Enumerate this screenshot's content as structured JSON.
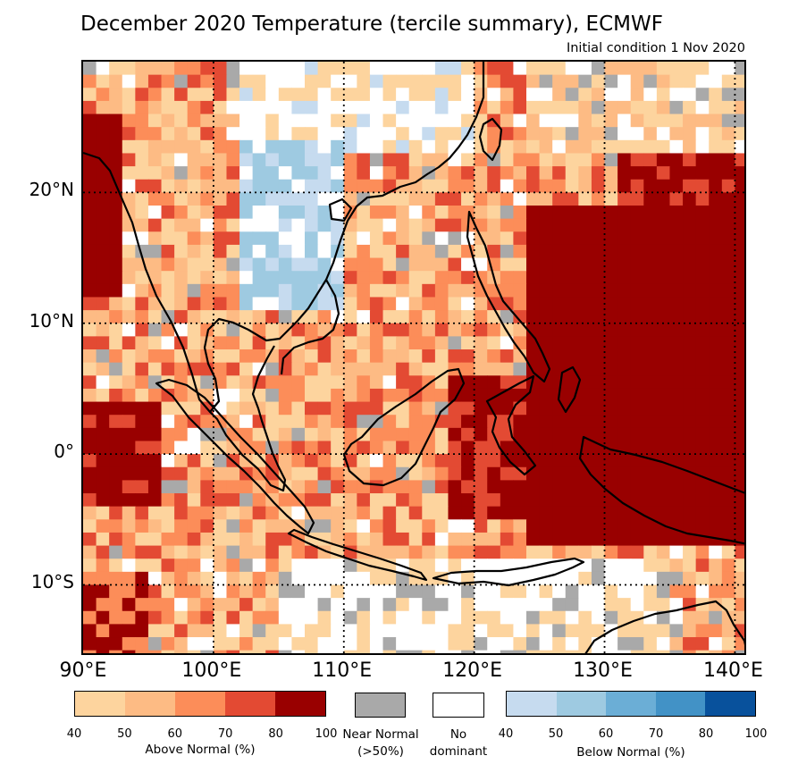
{
  "title": "December 2020 Temperature (tercile summary), ECMWF",
  "subtitle": "Initial condition 1 Nov 2020",
  "map": {
    "lon_range": [
      90,
      141
    ],
    "lat_range": [
      -15.5,
      30
    ],
    "lat_labels": [
      {
        "value": 20,
        "text": "20°N"
      },
      {
        "value": 10,
        "text": "10°N"
      },
      {
        "value": 0,
        "text": "0°"
      },
      {
        "value": -10,
        "text": "10°S"
      }
    ],
    "lon_labels": [
      {
        "value": 90,
        "text": "90°E"
      },
      {
        "value": 100,
        "text": "100°E"
      },
      {
        "value": 110,
        "text": "110°E"
      },
      {
        "value": 120,
        "text": "120°E"
      },
      {
        "value": 130,
        "text": "130°E"
      },
      {
        "value": 140,
        "text": "140°E"
      }
    ]
  },
  "colors": {
    "above": [
      "#fdd49e",
      "#fdbb84",
      "#fc8d59",
      "#e34a33",
      "#990000"
    ],
    "below": [
      "#c6dbef",
      "#9ecae1",
      "#6baed6",
      "#4292c6",
      "#08519c"
    ],
    "near_normal": "#a9a9a9",
    "no_dominant": "#ffffff",
    "coast": "#000000",
    "grid": "#000000"
  },
  "legend": {
    "above": {
      "label": "Above Normal (%)",
      "ticks": [
        "40",
        "50",
        "60",
        "70",
        "80",
        "100"
      ]
    },
    "near_normal": {
      "line1": "Near Normal",
      "line2": "(>50%)"
    },
    "no_dominant": {
      "line1": "No",
      "line2": "dominant"
    },
    "below": {
      "label": "Below Normal (%)",
      "ticks": [
        "40",
        "50",
        "60",
        "70",
        "80",
        "100"
      ]
    }
  }
}
